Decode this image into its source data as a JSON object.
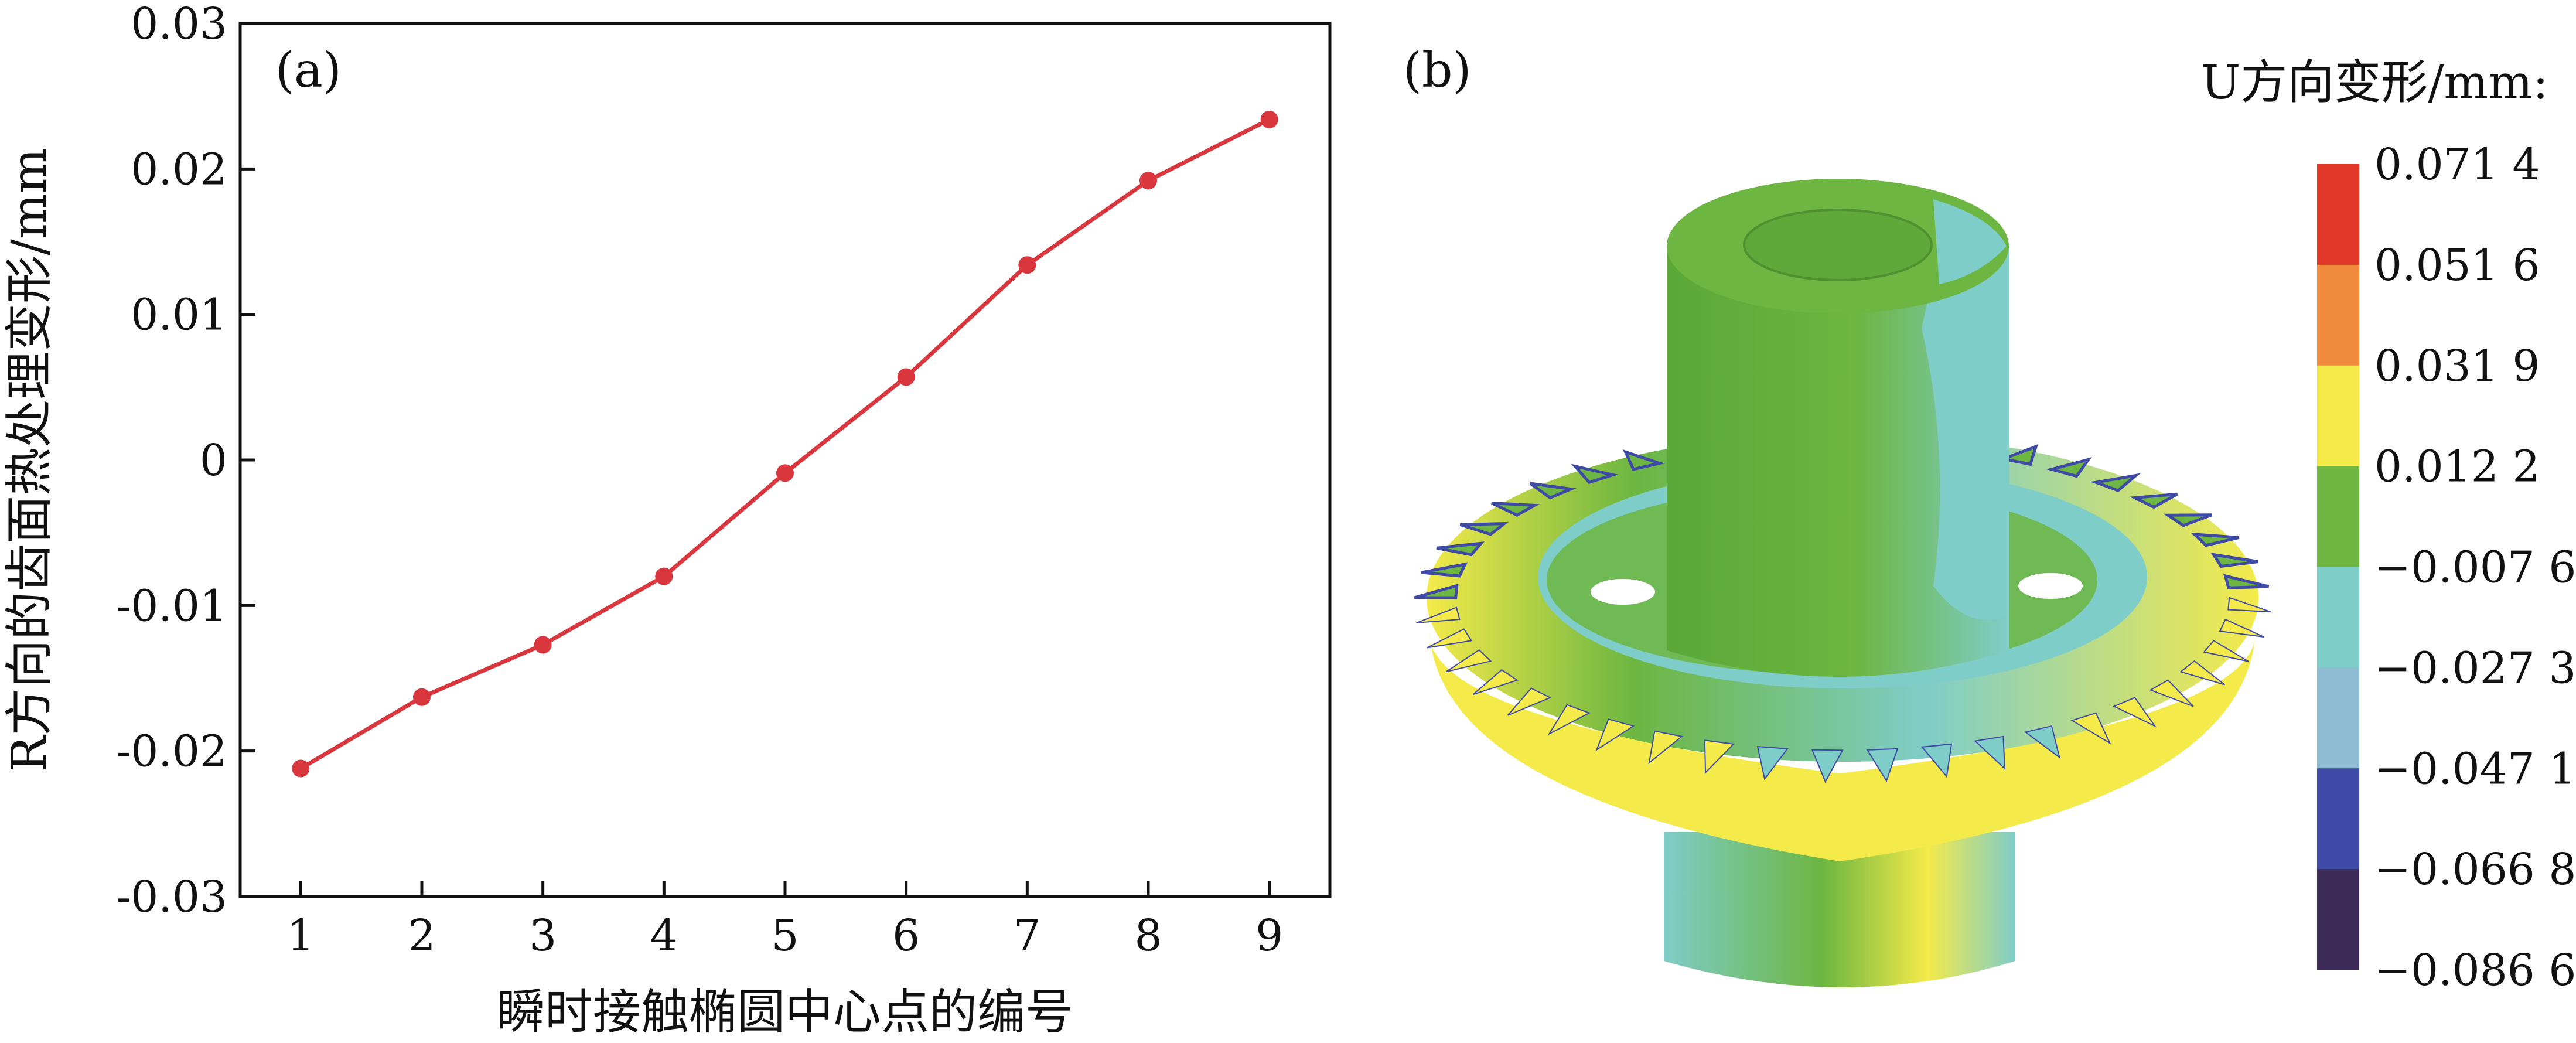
{
  "chart_data": [
    {
      "type": "line",
      "panel_label": "(a)",
      "title": "",
      "xlabel": "瞬时接触椭圆中心点的编号",
      "ylabel": "R方向的齿面热处理变形/mm",
      "x": [
        1,
        2,
        3,
        4,
        5,
        6,
        7,
        8,
        9
      ],
      "x_tick_labels": [
        "1",
        "2",
        "3",
        "4",
        "5",
        "6",
        "7",
        "8",
        "9"
      ],
      "y_tick_values": [
        -0.03,
        -0.02,
        -0.01,
        0,
        0.01,
        0.02,
        0.03
      ],
      "y_tick_labels": [
        "-0.03",
        "-0.02",
        "-0.01",
        "0",
        "0.01",
        "0.02",
        "0.03"
      ],
      "xlim": [
        0.5,
        9.5
      ],
      "ylim": [
        -0.03,
        0.03
      ],
      "grid": false,
      "series": [
        {
          "values": [
            -0.0212,
            -0.0163,
            -0.0127,
            -0.008,
            -0.0009,
            0.0057,
            0.0134,
            0.0192,
            0.0234
          ],
          "color": "#d9363e"
        }
      ]
    },
    {
      "type": "heatmap",
      "panel_label": "(b)",
      "colorbar_title": "U方向变形/mm:",
      "colorbar_labels": [
        "0.071 4",
        "0.051 6",
        "0.031 9",
        "0.012 2",
        "−0.007 6",
        "−0.027 3",
        "−0.047 1",
        "−0.066 8",
        "−0.086 6"
      ],
      "colorbar_colors": [
        "#e23a2a",
        "#f08a3c",
        "#f4ea4a",
        "#6cb641",
        "#7fcdc8",
        "#8fbcd2",
        "#3e4aa6",
        "#3a2a55"
      ],
      "image_description_colors": {
        "shaft": "#6cb641",
        "shaft_shade": "#7fcdc8",
        "teeth_front": "#f4ea4a",
        "teeth_dark": "#3e4aa6"
      }
    }
  ]
}
